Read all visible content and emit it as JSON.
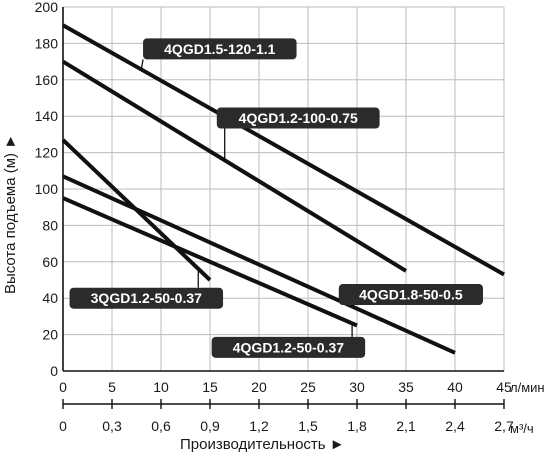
{
  "chart_data": {
    "type": "line",
    "grid": true,
    "xlabel": "Производительность ►",
    "ylabel": "Высота подъема (м) ►",
    "x_unit_primary": "л/мин",
    "x_unit_secondary": "м³/ч",
    "xlim": [
      0,
      45
    ],
    "ylim": [
      0,
      200
    ],
    "x_ticks": [
      0,
      5,
      10,
      15,
      20,
      25,
      30,
      35,
      40,
      45
    ],
    "x_tick_labels": [
      "0",
      "5",
      "10",
      "15",
      "20",
      "25",
      "30",
      "35",
      "40",
      "45"
    ],
    "x2_tick_labels": [
      "0",
      "0,3",
      "0,6",
      "0,9",
      "1,2",
      "1,5",
      "1,8",
      "2,1",
      "2,4",
      "2,7"
    ],
    "y_ticks": [
      0,
      20,
      40,
      60,
      80,
      100,
      120,
      140,
      160,
      180,
      200
    ],
    "y_tick_labels": [
      "0",
      "20",
      "40",
      "60",
      "80",
      "100",
      "120",
      "140",
      "160",
      "180",
      "200"
    ],
    "series": [
      {
        "name": "4QGD1.5-120-1.1",
        "x": [
          0,
          45
        ],
        "y": [
          190,
          53
        ]
      },
      {
        "name": "4QGD1.2-100-0.75",
        "x": [
          0,
          35
        ],
        "y": [
          170,
          55
        ]
      },
      {
        "name": "3QGD1.2-50-0.37",
        "x": [
          0,
          15
        ],
        "y": [
          127,
          50
        ]
      },
      {
        "name": "4QGD1.8-50-0.5",
        "x": [
          0,
          40
        ],
        "y": [
          107,
          10
        ]
      },
      {
        "name": "4QGD1.2-50-0.37",
        "x": [
          0,
          30
        ],
        "y": [
          95,
          25
        ]
      }
    ],
    "annotations": [
      {
        "series": 0,
        "text": "4QGD1.5-120-1.1",
        "point": [
          8,
          166
        ],
        "label_at": [
          16,
          177
        ]
      },
      {
        "series": 1,
        "text": "4QGD1.2-100-0.75",
        "point": [
          16.5,
          115
        ],
        "label_at": [
          24,
          139
        ]
      },
      {
        "series": 2,
        "text": "3QGD1.2-50-0.37",
        "point": [
          13.8,
          55
        ],
        "label_at": [
          8.5,
          40
        ]
      },
      {
        "series": 3,
        "text": "4QGD1.8-50-0.5",
        "point": [
          36.6,
          40
        ],
        "label_at": [
          35.5,
          42
        ]
      },
      {
        "series": 4,
        "text": "4QGD1.2-50-0.37",
        "point": [
          29.5,
          26
        ],
        "label_at": [
          23,
          13
        ]
      }
    ]
  }
}
